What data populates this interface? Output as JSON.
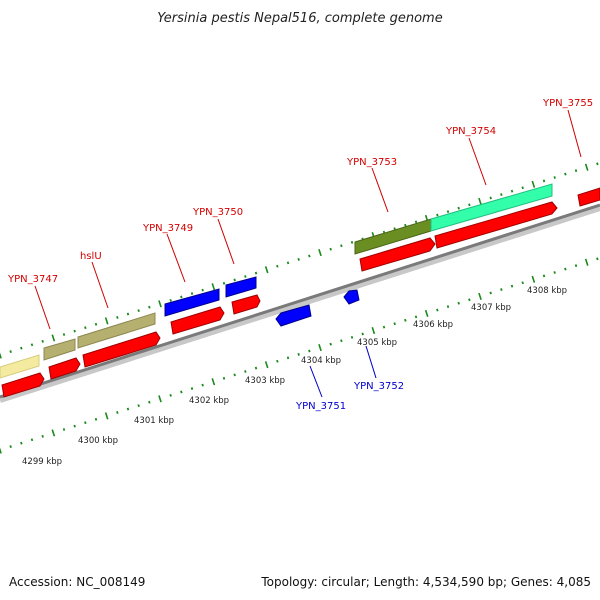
{
  "title": "Yersinia pestis Nepal516, complete genome",
  "footer": {
    "accession": "Accession: NC_008149",
    "summary": "Topology: circular; Length: 4,534,590 bp; Genes: 4,085"
  },
  "colors": {
    "backbone": "#808080",
    "tick": "#1a8a1a",
    "cds_red": "#ff0000",
    "cds_blue": "#0000ff",
    "label_red": "#d40000",
    "label_blue": "#0000cc",
    "khaki": "#b5b070",
    "olive": "#6b8e23",
    "aqua": "#33ffaa",
    "pale_yellow": "#f5eba0"
  },
  "kbp_labels": [
    {
      "text": "4299 kbp"
    },
    {
      "text": "4300 kbp"
    },
    {
      "text": "4301 kbp"
    },
    {
      "text": "4302 kbp"
    },
    {
      "text": "4303 kbp"
    },
    {
      "text": "4304 kbp"
    },
    {
      "text": "4305 kbp"
    },
    {
      "text": "4306 kbp"
    },
    {
      "text": "4307 kbp"
    },
    {
      "text": "4308 kbp"
    }
  ],
  "gene_labels": [
    {
      "text": "YPN_3747",
      "strand": "forward"
    },
    {
      "text": "hslU",
      "strand": "forward"
    },
    {
      "text": "YPN_3749",
      "strand": "forward"
    },
    {
      "text": "YPN_3750",
      "strand": "forward"
    },
    {
      "text": "YPN_3753",
      "strand": "forward"
    },
    {
      "text": "YPN_3754",
      "strand": "forward"
    },
    {
      "text": "YPN_3755",
      "strand": "forward"
    },
    {
      "text": "YPN_3751",
      "strand": "reverse"
    },
    {
      "text": "YPN_3752",
      "strand": "reverse"
    }
  ]
}
